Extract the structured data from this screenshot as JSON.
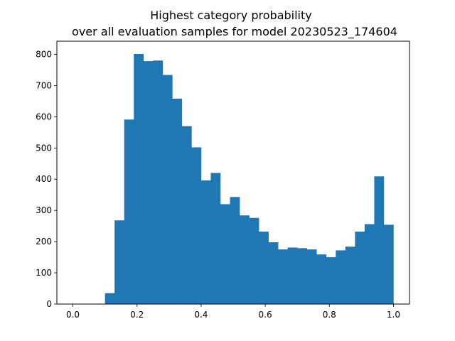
{
  "chart_data": {
    "type": "bar",
    "title_lines": [
      "Highest category probability",
      "over all evaluation samples for model 20230523_174604"
    ],
    "xlabel": "",
    "ylabel": "",
    "xlim": [
      -0.05,
      1.05
    ],
    "ylim": [
      0,
      842
    ],
    "xticks": [
      0.0,
      0.2,
      0.4,
      0.6,
      0.8,
      1.0
    ],
    "xtick_labels": [
      "0.0",
      "0.2",
      "0.4",
      "0.6",
      "0.8",
      "1.0"
    ],
    "yticks": [
      0,
      100,
      200,
      300,
      400,
      500,
      600,
      700,
      800
    ],
    "ytick_labels": [
      "0",
      "100",
      "200",
      "300",
      "400",
      "500",
      "600",
      "700",
      "800"
    ],
    "bar_color": "#1f77b4",
    "bins": [
      {
        "x0": 0.1,
        "x1": 0.13,
        "count": 35
      },
      {
        "x0": 0.13,
        "x1": 0.16,
        "count": 268
      },
      {
        "x0": 0.16,
        "x1": 0.19,
        "count": 591
      },
      {
        "x0": 0.19,
        "x1": 0.22,
        "count": 801
      },
      {
        "x0": 0.22,
        "x1": 0.25,
        "count": 778
      },
      {
        "x0": 0.25,
        "x1": 0.28,
        "count": 780
      },
      {
        "x0": 0.28,
        "x1": 0.31,
        "count": 734
      },
      {
        "x0": 0.31,
        "x1": 0.34,
        "count": 658
      },
      {
        "x0": 0.34,
        "x1": 0.37,
        "count": 570
      },
      {
        "x0": 0.37,
        "x1": 0.4,
        "count": 502
      },
      {
        "x0": 0.4,
        "x1": 0.43,
        "count": 396
      },
      {
        "x0": 0.43,
        "x1": 0.46,
        "count": 420
      },
      {
        "x0": 0.46,
        "x1": 0.49,
        "count": 320
      },
      {
        "x0": 0.49,
        "x1": 0.52,
        "count": 343
      },
      {
        "x0": 0.52,
        "x1": 0.55,
        "count": 284
      },
      {
        "x0": 0.55,
        "x1": 0.58,
        "count": 276
      },
      {
        "x0": 0.58,
        "x1": 0.61,
        "count": 232
      },
      {
        "x0": 0.61,
        "x1": 0.64,
        "count": 198
      },
      {
        "x0": 0.64,
        "x1": 0.67,
        "count": 175
      },
      {
        "x0": 0.67,
        "x1": 0.7,
        "count": 181
      },
      {
        "x0": 0.7,
        "x1": 0.73,
        "count": 179
      },
      {
        "x0": 0.73,
        "x1": 0.76,
        "count": 175
      },
      {
        "x0": 0.76,
        "x1": 0.79,
        "count": 159
      },
      {
        "x0": 0.79,
        "x1": 0.82,
        "count": 150
      },
      {
        "x0": 0.82,
        "x1": 0.85,
        "count": 172
      },
      {
        "x0": 0.85,
        "x1": 0.88,
        "count": 184
      },
      {
        "x0": 0.88,
        "x1": 0.91,
        "count": 232
      },
      {
        "x0": 0.91,
        "x1": 0.94,
        "count": 256
      },
      {
        "x0": 0.94,
        "x1": 0.97,
        "count": 409
      },
      {
        "x0": 0.97,
        "x1": 1.0,
        "count": 254
      }
    ]
  }
}
